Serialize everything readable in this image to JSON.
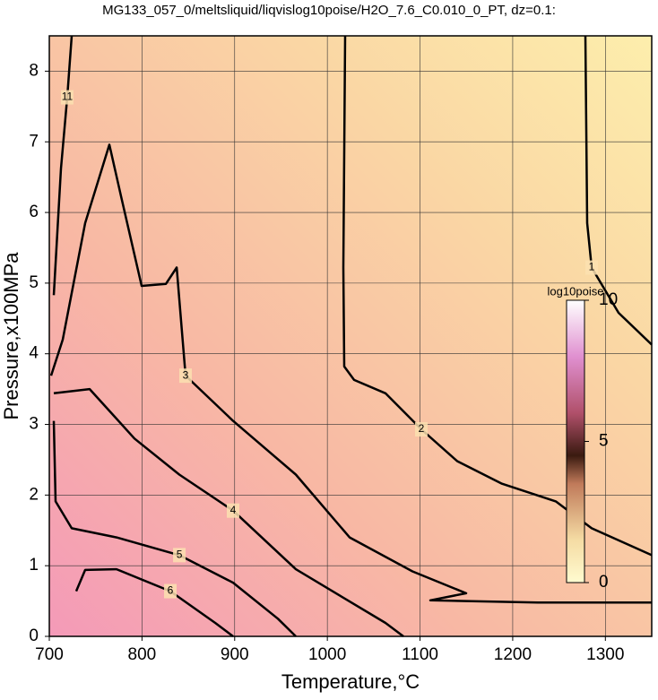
{
  "chart_data": {
    "type": "contour",
    "title": "MG133_057_0/meltsliquid/liqvislog10poise/H2O_7.6_C0.010_0_PT, dz=0.1:",
    "x_label": "Temperature,°C",
    "y_label": "Pressure,x100MPa",
    "xlim": [
      700,
      1350
    ],
    "xticks": [
      700,
      800,
      900,
      1000,
      1100,
      1200,
      1300
    ],
    "ylim": [
      0,
      8.5
    ],
    "yticks": [
      0,
      1,
      2,
      3,
      4,
      5,
      6,
      7,
      8
    ],
    "grid": true,
    "colorbar": {
      "label": "log10poise",
      "lim": [
        0,
        10
      ],
      "ticks": [
        0,
        5,
        10
      ]
    },
    "contours": [
      {
        "level": 1,
        "x": [
          1278.4,
          1280.4,
          1285.2,
          1314.2,
          1350
        ],
        "y": [
          8.5,
          5.85,
          5.22,
          4.58,
          4.13
        ]
      },
      {
        "level": 2,
        "x": [
          1019.2,
          1017.3,
          1018.2,
          1028.9,
          1062.7,
          1101.4,
          1140.1,
          1188.5,
          1246.5,
          1285.2,
          1350
        ],
        "y": [
          8.5,
          5.22,
          3.82,
          3.63,
          3.44,
          2.93,
          2.48,
          2.16,
          1.91,
          1.53,
          1.15
        ]
      },
      {
        "level": 3,
        "x": [
          701.9,
          714.5,
          738.7,
          764.8,
          777.4,
          799.6,
          825.8,
          837.4,
          847.0,
          898.3,
          966.0,
          1024.0,
          1091.8,
          1149.8,
          1111.1,
          1227.2,
          1350
        ],
        "y": [
          3.69,
          4.2,
          5.85,
          6.96,
          6.23,
          4.96,
          4.99,
          5.22,
          3.69,
          3.05,
          2.29,
          1.4,
          0.92,
          0.61,
          0.51,
          0.48,
          0.48
        ]
      },
      {
        "level": 4,
        "x": [
          704.8,
          743.5,
          791.9,
          840.3,
          898.3,
          966.0,
          1014.4,
          1062.7,
          1082.1
        ],
        "y": [
          3.44,
          3.5,
          2.8,
          2.29,
          1.78,
          0.95,
          0.57,
          0.19,
          0
        ]
      },
      {
        "level": 5,
        "x": [
          704.8,
          706.8,
          724.2,
          772.5,
          840.3,
          898.3,
          946.7,
          966.0
        ],
        "y": [
          3.05,
          1.91,
          1.53,
          1.4,
          1.15,
          0.76,
          0.25,
          0
        ]
      },
      {
        "level": 6,
        "x": [
          729.0,
          738.7,
          772.5,
          830.6,
          879.0,
          898.3
        ],
        "y": [
          0.64,
          0.94,
          0.95,
          0.64,
          0.19,
          0
        ]
      },
      {
        "level": 11,
        "x": [
          704.8,
          712.6,
          719.3,
          724.2
        ],
        "y": [
          4.83,
          6.62,
          7.63,
          8.5
        ]
      }
    ]
  }
}
